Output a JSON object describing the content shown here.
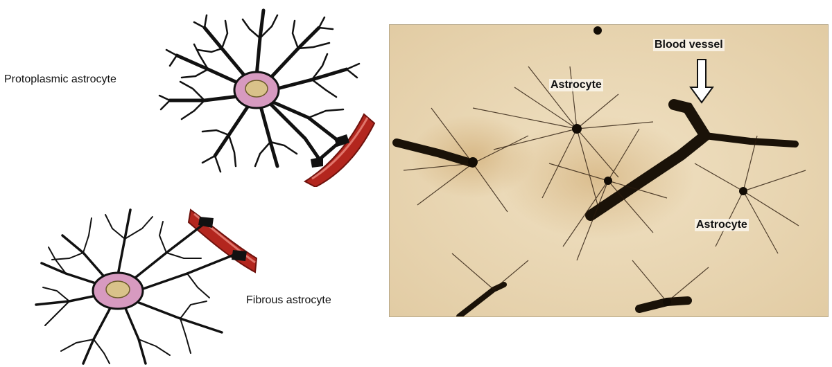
{
  "illustration": {
    "protoplasmic_label": "Protoplasmic astrocyte",
    "fibrous_label": "Fibrous astrocyte"
  },
  "micrograph": {
    "blood_vessel_label": "Blood vessel",
    "astrocyte_label_1": "Astrocyte",
    "astrocyte_label_2": "Astrocyte"
  },
  "colors": {
    "vessel": "#b3261e",
    "process": "#111111",
    "soma": "#d79ac0",
    "nucleus": "#d9c28a",
    "background_stain": "#ead8b6"
  }
}
